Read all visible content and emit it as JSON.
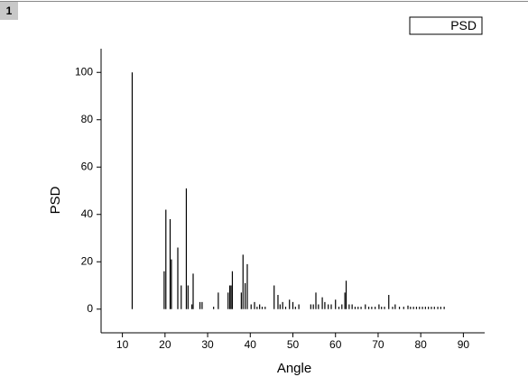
{
  "window_tab": "1",
  "chart_data": {
    "type": "stem",
    "x_label": "Angle",
    "y_label": "PSD",
    "xlim": [
      5,
      95
    ],
    "xticks": [
      10,
      20,
      30,
      40,
      50,
      60,
      70,
      80,
      90
    ],
    "ylim": [
      -10,
      110
    ],
    "yticks": [
      0,
      20,
      40,
      60,
      80,
      100
    ],
    "legend": "top-right",
    "series": [
      {
        "name": "PSD",
        "color": "#000000",
        "x": [
          12.3,
          19.8,
          20.2,
          21.2,
          21.5,
          23.0,
          23.8,
          25.0,
          25.4,
          26.3,
          26.6,
          28.2,
          28.7,
          31.4,
          32.5,
          34.8,
          35.2,
          35.5,
          35.8,
          37.9,
          38.3,
          38.8,
          39.3,
          40.2,
          41.0,
          41.6,
          42.2,
          42.8,
          43.5,
          45.6,
          46.5,
          47.0,
          47.6,
          48.3,
          49.2,
          50.0,
          50.6,
          51.4,
          54.2,
          54.8,
          55.4,
          56.0,
          56.9,
          57.5,
          58.3,
          59.0,
          60.0,
          60.8,
          61.5,
          62.2,
          62.5,
          63.2,
          63.9,
          64.6,
          65.3,
          66.0,
          67.0,
          67.8,
          68.5,
          69.3,
          70.2,
          70.8,
          71.5,
          72.5,
          73.4,
          74.0,
          75.0,
          76.0,
          77.0,
          77.6,
          78.3,
          79.0,
          79.7,
          80.4,
          81.1,
          81.8,
          82.5,
          83.2,
          84.0,
          84.7,
          85.5
        ],
        "values": [
          100,
          16,
          42,
          38,
          21,
          26,
          10,
          51,
          10,
          2,
          15,
          3,
          3,
          1,
          7,
          7,
          10,
          10,
          16,
          7,
          23,
          11,
          19,
          2,
          3,
          1,
          2,
          1,
          1,
          10,
          6,
          2,
          3,
          1,
          4,
          3,
          1,
          2,
          2,
          2,
          7,
          2,
          5,
          3,
          2,
          2,
          4,
          1,
          2,
          7,
          12,
          2,
          2,
          1,
          1,
          1,
          2,
          1,
          1,
          1,
          2,
          1,
          1,
          6,
          1,
          2,
          1,
          1,
          1.5,
          1,
          1,
          1,
          1,
          1,
          1,
          1,
          1,
          1,
          1,
          1,
          1
        ]
      }
    ]
  }
}
